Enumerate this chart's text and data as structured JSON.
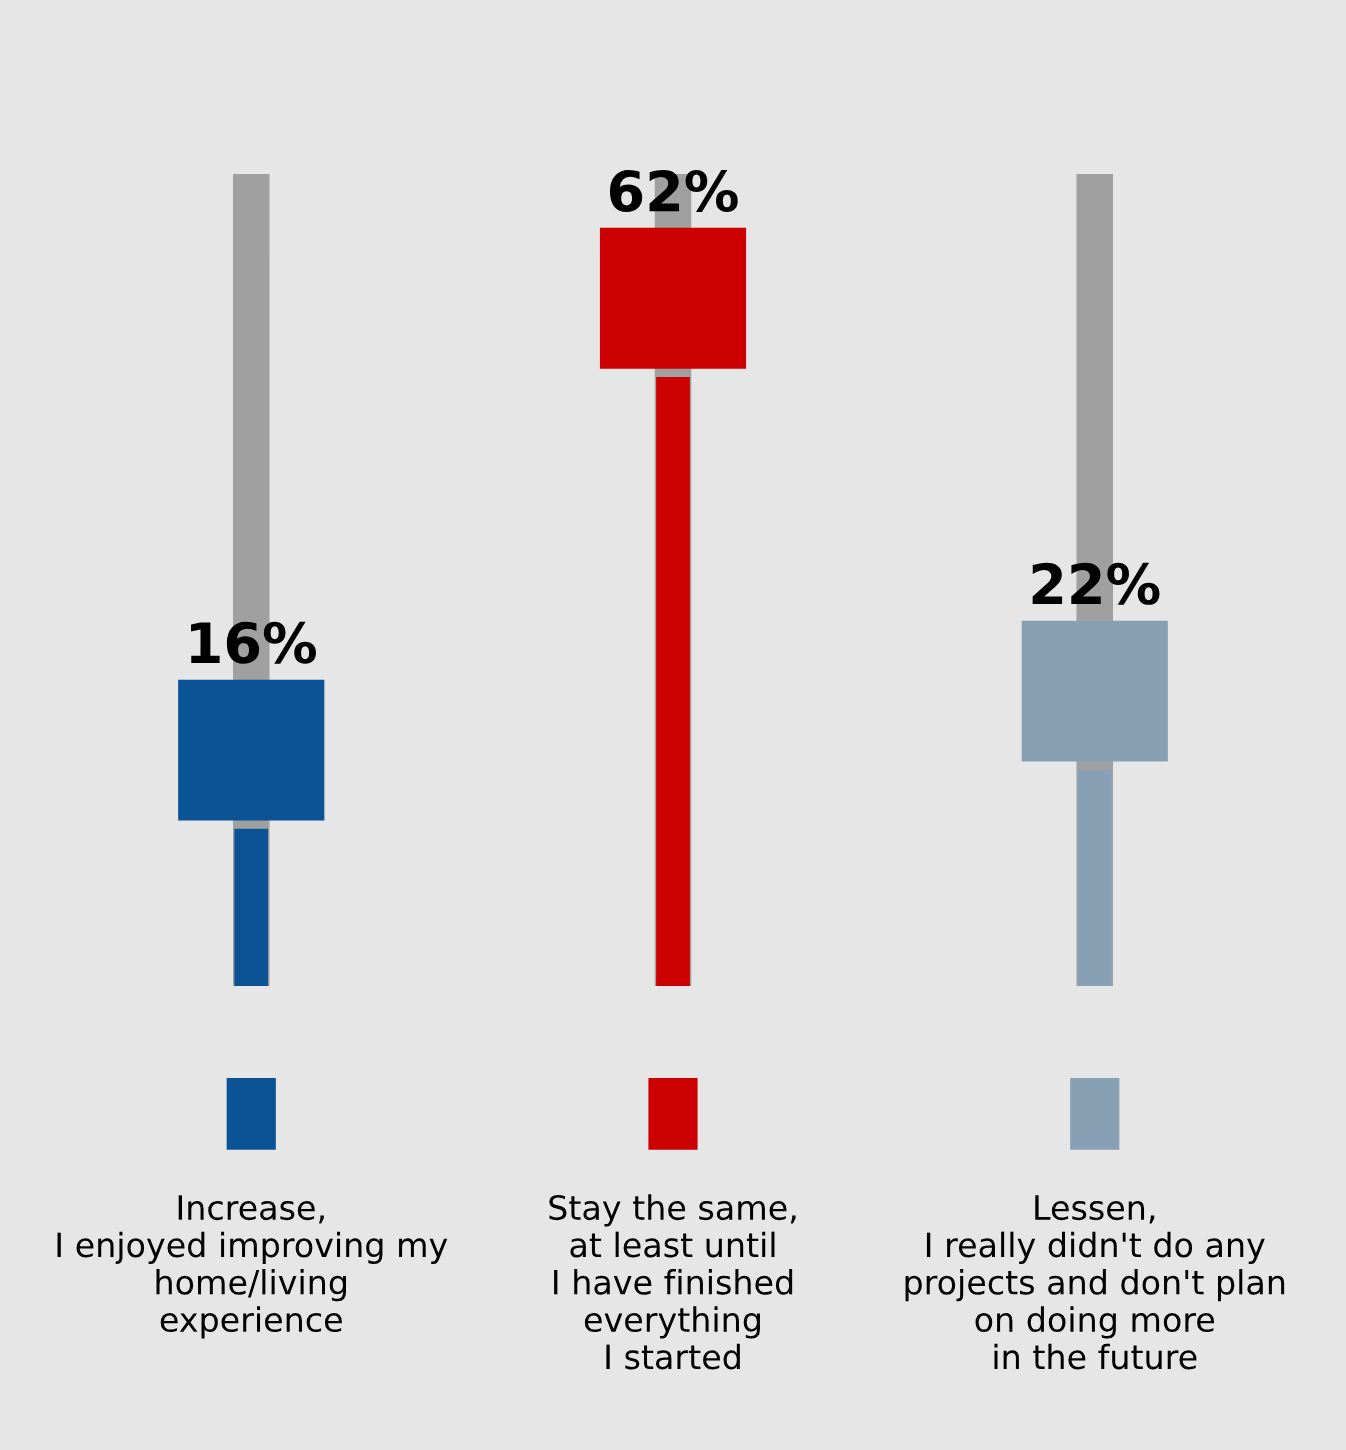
{
  "chart_data": {
    "type": "bar",
    "categories": [
      "Increase,\nI enjoyed improving my\nhome/living\nexperience",
      "Stay the same,\nat least until\nI have finished\neverything\nI started",
      "Lessen,\nI really didn't do any\nprojects and don't plan\non doing more\nin the future"
    ],
    "values": [
      16,
      62,
      22
    ],
    "colors": [
      "#0b5394",
      "#cc0000",
      "#87a0b4"
    ],
    "value_labels": [
      "16%",
      "62%",
      "22%"
    ],
    "tick_labels": "x",
    "grid": false,
    "legend": false
  }
}
